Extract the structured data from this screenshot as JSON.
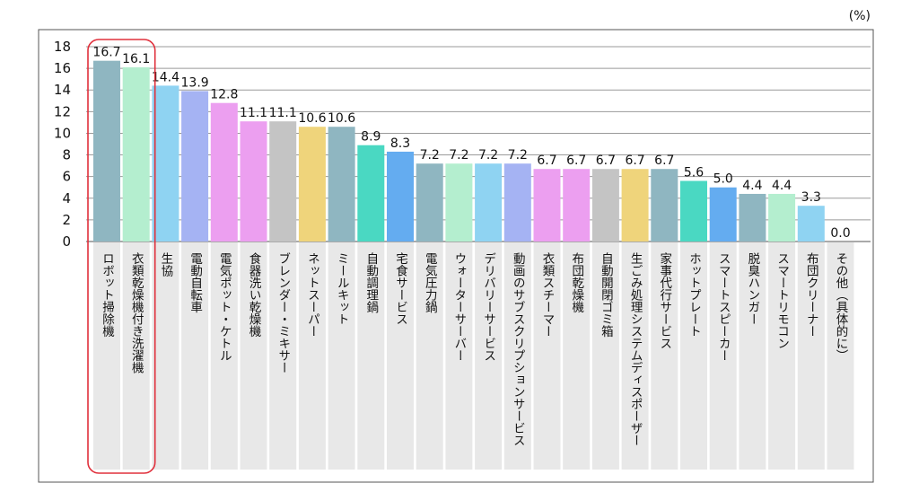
{
  "chart_data": {
    "type": "bar",
    "unit_label": "(%)",
    "ylim": [
      0,
      18
    ],
    "yticks": [
      0,
      2,
      4,
      6,
      8,
      10,
      12,
      14,
      16,
      18
    ],
    "grid": true,
    "highlight_indices": [
      0,
      1
    ],
    "categories": [
      "ロボット掃除機",
      "衣類乾燥機付き洗濯機",
      "生協",
      "電動自転車",
      "電気ポット・ケトル",
      "食器洗い乾燥機",
      "ブレンダー・ミキサー",
      "ネットスーパー",
      "ミールキット",
      "自動調理鍋",
      "宅食サービス",
      "電気圧力鍋",
      "ウォーターサーバー",
      "デリバリーサービス",
      "動画のサブスクリプションサービス",
      "衣類スチーマー",
      "布団乾燥機",
      "自動開閉ゴミ箱",
      "生ごみ処理システムディスポーザー",
      "家事代行サービス",
      "ホットプレート",
      "スマートスピーカー",
      "脱臭ハンガー",
      "スマートリモコン",
      "布団クリーナー",
      "その他（具体的に）"
    ],
    "values": [
      16.7,
      16.1,
      14.4,
      13.9,
      12.8,
      11.1,
      11.1,
      10.6,
      10.6,
      8.9,
      8.3,
      7.2,
      7.2,
      7.2,
      7.2,
      6.7,
      6.7,
      6.7,
      6.7,
      6.7,
      5.6,
      5.0,
      4.4,
      4.4,
      3.3,
      0.0
    ],
    "value_labels": [
      "16.7",
      "16.1",
      "14.4",
      "13.9",
      "12.8",
      "11.1",
      "11.1",
      "10.6",
      "10.6",
      "8.9",
      "8.3",
      "7.2",
      "7.2",
      "7.2",
      "7.2",
      "6.7",
      "6.7",
      "6.7",
      "6.7",
      "6.7",
      "5.6",
      "5.0",
      "4.4",
      "4.4",
      "3.3",
      "0.0"
    ],
    "colors": [
      "#8fb6c1",
      "#b4eecf",
      "#8fd3f2",
      "#a5b3f3",
      "#ec9ff0",
      "#ec9ff0",
      "#c4c4c4",
      "#efd47b",
      "#8fb6c1",
      "#4ad8c2",
      "#64acf0",
      "#8fb6c1",
      "#b4eecf",
      "#8fd3f2",
      "#a5b3f3",
      "#ec9ff0",
      "#ec9ff0",
      "#c4c4c4",
      "#efd47b",
      "#8fb6c1",
      "#4ad8c2",
      "#64acf0",
      "#8fb6c1",
      "#b4eecf",
      "#8fd3f2",
      "#a5b3f3"
    ],
    "label_band_color": "#e8e8e8",
    "highlight_color": "#e0303c"
  }
}
